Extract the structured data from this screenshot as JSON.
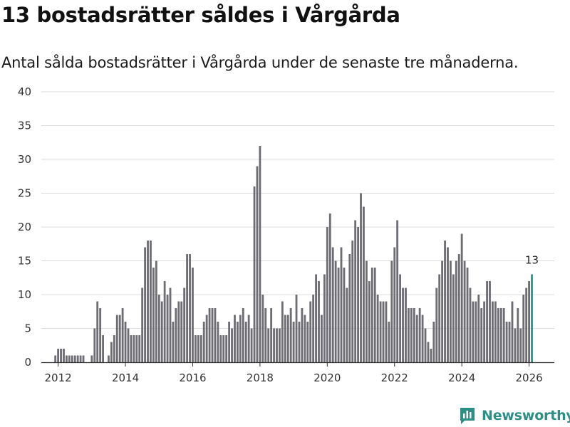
{
  "title": "13 bostadsrätter såldes i Vårgårda",
  "subtitle": "Antal sålda bostadsrätter i Vårgårda under de senaste tre månaderna.",
  "brand": {
    "name": "Newsworthy",
    "color": "#2c8f86"
  },
  "chart_data": {
    "type": "bar",
    "title": "",
    "xlabel": "",
    "ylabel": "",
    "ylim": [
      0,
      40
    ],
    "yticks": [
      "0",
      "5",
      "10",
      "15",
      "20",
      "25",
      "30",
      "35",
      "40"
    ],
    "xticks": [
      "2012",
      "2014",
      "2016",
      "2018",
      "2020",
      "2022",
      "2024",
      "2026"
    ],
    "x_start": 2011.917,
    "x_step": 0.08333,
    "bar_color": "#6e6d74",
    "highlight_color": "#1f9b8c",
    "grid": true,
    "annotation": {
      "label": "13",
      "index_from_end": 1
    },
    "values": [
      1,
      2,
      2,
      2,
      1,
      1,
      1,
      1,
      1,
      1,
      1,
      0,
      0,
      1,
      5,
      9,
      8,
      4,
      0,
      1,
      3,
      4,
      7,
      7,
      8,
      6,
      5,
      4,
      4,
      4,
      4,
      11,
      17,
      18,
      18,
      14,
      15,
      10,
      9,
      12,
      10,
      11,
      6,
      8,
      9,
      9,
      11,
      16,
      16,
      14,
      4,
      4,
      4,
      6,
      7,
      8,
      8,
      8,
      6,
      4,
      4,
      4,
      6,
      5,
      7,
      6,
      7,
      8,
      6,
      7,
      5,
      26,
      29,
      32,
      10,
      8,
      5,
      8,
      5,
      5,
      5,
      9,
      7,
      7,
      8,
      6,
      10,
      6,
      8,
      7,
      6,
      9,
      10,
      13,
      12,
      7,
      13,
      20,
      22,
      17,
      15,
      14,
      17,
      14,
      11,
      16,
      18,
      21,
      20,
      25,
      23,
      15,
      12,
      14,
      14,
      10,
      9,
      9,
      9,
      6,
      15,
      17,
      21,
      13,
      11,
      11,
      8,
      8,
      8,
      7,
      8,
      7,
      5,
      3,
      2,
      6,
      11,
      13,
      15,
      18,
      17,
      15,
      13,
      15,
      16,
      19,
      15,
      14,
      11,
      9,
      9,
      10,
      8,
      9,
      12,
      12,
      9,
      9,
      8,
      8,
      8,
      6,
      6,
      9,
      5,
      8,
      5,
      10,
      11,
      12,
      13
    ]
  }
}
